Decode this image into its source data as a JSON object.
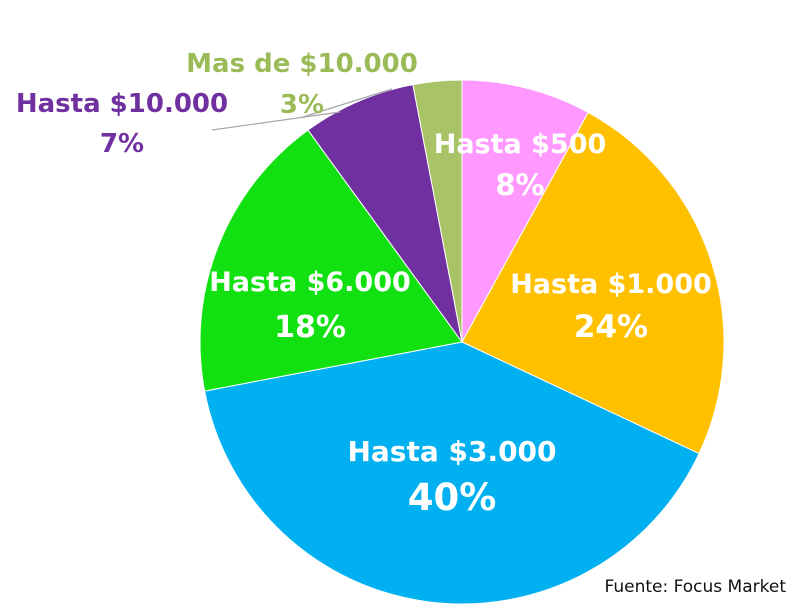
{
  "chart_data": {
    "type": "pie",
    "start": "top",
    "direction": "clockwise",
    "slices": [
      {
        "label": "Hasta $500",
        "pct_label": "8%",
        "value": 8,
        "color": "#ff99ff",
        "label_color": "#ffffff"
      },
      {
        "label": "Hasta $1.000",
        "pct_label": "24%",
        "value": 24,
        "color": "#ffc000",
        "label_color": "#ffffff"
      },
      {
        "label": "Hasta $3.000",
        "pct_label": "40%",
        "value": 40,
        "color": "#00b0f0",
        "label_color": "#ffffff"
      },
      {
        "label": "Hasta $6.000",
        "pct_label": "18%",
        "value": 18,
        "color": "#11e011",
        "label_color": "#ffffff"
      },
      {
        "label": "Hasta $10.000",
        "pct_label": "7%",
        "value": 7,
        "color": "#7030a0",
        "label_color": "#7030a0"
      },
      {
        "label": "Mas de $10.000",
        "pct_label": "3%",
        "value": 3,
        "color": "#a9c466",
        "label_color": "#9bbb59"
      }
    ]
  },
  "source": "Fuente: Focus Market"
}
